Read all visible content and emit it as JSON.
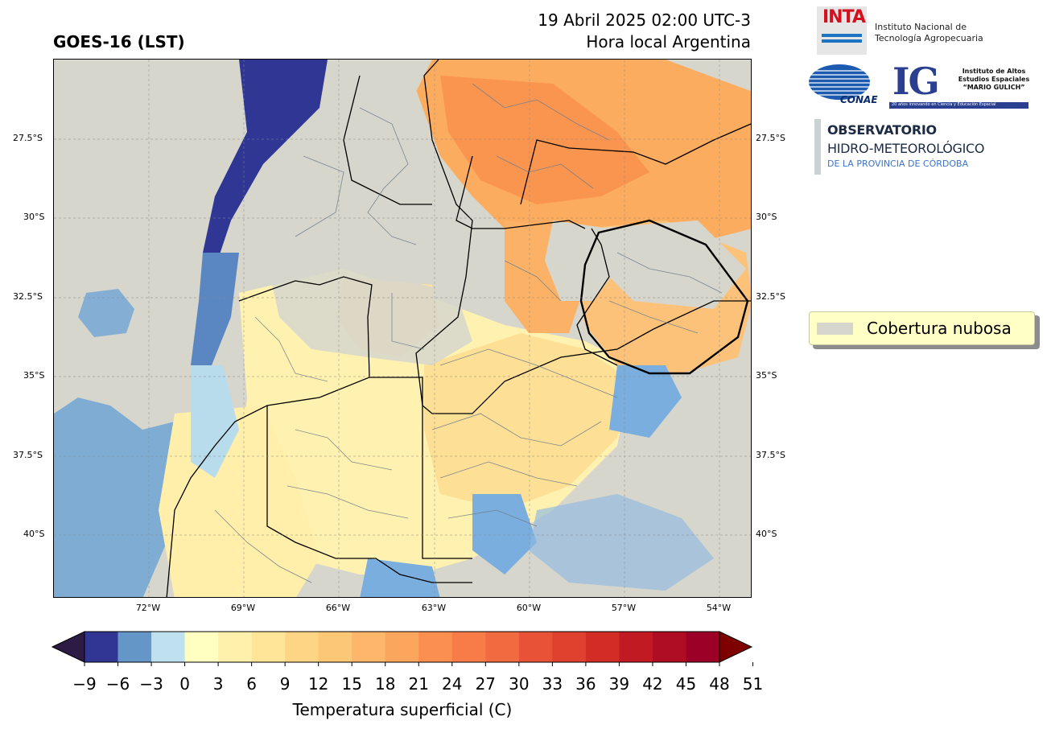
{
  "header": {
    "product": "GOES-16 (LST)",
    "datetime": "19 Abril 2025 02:00 UTC-3",
    "local": "Hora local Argentina"
  },
  "map": {
    "lat_labels": [
      "27.5°S",
      "30°S",
      "32.5°S",
      "35°S",
      "37.5°S",
      "40°S"
    ],
    "lon_labels": [
      "72°W",
      "69°W",
      "66°W",
      "63°W",
      "60°W",
      "57°W",
      "54°W"
    ],
    "cloud_color": "#d6d6cc"
  },
  "logos": {
    "inta_word": "INTA",
    "inta_line1": "Instituto Nacional de",
    "inta_line2": "Tecnología Agropecuaria",
    "conae_word": "CONAE",
    "ig_letters": "IG",
    "ig_line1": "Instituto de Altos",
    "ig_line2": "Estudios Espaciales",
    "ig_line3": "“MARIO GULICH”",
    "ig_footer": "20 años innovando en Ciencia y Educación Espacial",
    "obs_line1": "OBSERVATORIO",
    "obs_line2": "HIDRO-METEOROLÓGICO",
    "obs_line3": "DE LA PROVINCIA DE CÓRDOBA"
  },
  "legend": {
    "label": "Cobertura nubosa",
    "swatch_color": "#d6d6cc"
  },
  "colorbar": {
    "title": "Temperatura superficial (C)",
    "ticks": [
      "−9",
      "−6",
      "−3",
      "0",
      "3",
      "6",
      "9",
      "12",
      "15",
      "18",
      "21",
      "24",
      "27",
      "30",
      "33",
      "36",
      "39",
      "42",
      "45",
      "48",
      "51"
    ],
    "under_color": "#2d1b45",
    "over_color": "#7f0000",
    "colors": [
      "#313695",
      "#6596c8",
      "#bfe1ef",
      "#ffffc2",
      "#fff1ac",
      "#fee597",
      "#fed585",
      "#fdc778",
      "#fdb66a",
      "#fca55d",
      "#fb8f50",
      "#f77c48",
      "#f16a40",
      "#e85337",
      "#df412e",
      "#d22c25",
      "#c21a22",
      "#ae0d24",
      "#9c0026"
    ]
  }
}
